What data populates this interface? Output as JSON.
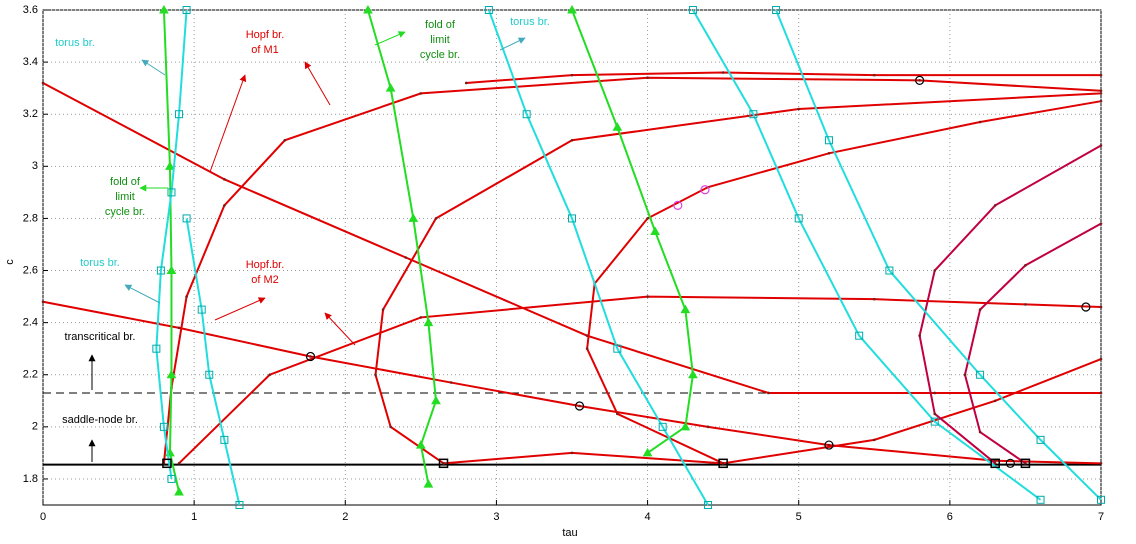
{
  "chart_data": {
    "type": "line",
    "xlabel": "tau",
    "ylabel": "c",
    "xlim": [
      0,
      7
    ],
    "xticks": [
      0,
      1,
      2,
      3,
      4,
      5,
      6,
      7
    ],
    "ylim": [
      1.7,
      3.6
    ],
    "yticks": [
      1.8,
      2,
      2.2,
      2.4,
      2.6,
      2.8,
      3,
      3.2,
      3.4,
      3.6
    ],
    "grid": true,
    "series": [
      {
        "color": "#000000",
        "dashed": false,
        "marker": "none",
        "x": [
          0,
          7
        ],
        "values": [
          1.855,
          1.855
        ]
      },
      {
        "color": "#000000",
        "dashed": true,
        "marker": "none",
        "x": [
          0,
          7
        ],
        "values": [
          2.13,
          2.13
        ]
      },
      {
        "color": "#e00000",
        "dashed": false,
        "marker": "dot",
        "x": [
          0,
          1.2,
          2.4,
          3.6,
          4.8,
          5.9,
          7
        ],
        "values": [
          3.32,
          2.95,
          2.65,
          2.35,
          2.13,
          2.13,
          2.13
        ]
      },
      {
        "color": "#e00000",
        "dashed": false,
        "marker": "dot",
        "x": [
          0,
          0.9,
          1.77,
          2.7,
          3.55,
          4.4,
          5.2,
          6.3,
          7
        ],
        "values": [
          2.48,
          2.38,
          2.27,
          2.17,
          2.08,
          2.0,
          1.93,
          1.87,
          1.86
        ]
      },
      {
        "color": "#e00000",
        "dashed": false,
        "marker": "dot",
        "x": [
          0.8,
          0.85,
          0.95,
          1.2,
          1.6,
          2.5,
          4,
          5.8,
          7
        ],
        "values": [
          1.86,
          2.15,
          2.5,
          2.85,
          3.1,
          3.28,
          3.34,
          3.33,
          3.29
        ]
      },
      {
        "color": "#e00000",
        "dashed": false,
        "marker": "dot",
        "x": [
          2.8,
          3.5,
          4.5,
          5.5,
          7
        ],
        "values": [
          3.32,
          3.35,
          3.36,
          3.35,
          3.35
        ]
      },
      {
        "color": "#e00000",
        "dashed": false,
        "marker": "dot",
        "x": [
          0.9,
          1.5,
          2.5,
          4,
          5.5,
          6.5,
          7
        ],
        "values": [
          1.86,
          2.2,
          2.42,
          2.5,
          2.49,
          2.47,
          2.46
        ]
      },
      {
        "color": "#e00000",
        "dashed": false,
        "marker": "dot",
        "x": [
          2.65,
          2.3,
          2.2,
          2.25,
          2.6,
          3.5,
          5,
          7
        ],
        "values": [
          1.86,
          2.0,
          2.2,
          2.45,
          2.8,
          3.1,
          3.22,
          3.28
        ]
      },
      {
        "color": "#e00000",
        "dashed": false,
        "marker": "dot",
        "x": [
          4.5,
          3.8,
          3.6,
          3.65,
          4,
          4.4,
          5.2,
          6.2,
          7
        ],
        "values": [
          1.86,
          2.05,
          2.3,
          2.55,
          2.8,
          2.92,
          3.05,
          3.17,
          3.25
        ]
      },
      {
        "color": "#e00000",
        "dashed": false,
        "marker": "dot",
        "x": [
          2.65,
          3.5,
          4.5,
          5.5,
          6.3,
          7
        ],
        "values": [
          1.86,
          1.9,
          1.86,
          1.95,
          2.1,
          2.26
        ]
      },
      {
        "color": "#c00040",
        "dashed": false,
        "marker": "dot",
        "x": [
          6.3,
          5.9,
          5.8,
          5.9,
          6.3,
          7
        ],
        "values": [
          1.86,
          2.05,
          2.35,
          2.6,
          2.85,
          3.08
        ]
      },
      {
        "color": "#c00040",
        "dashed": false,
        "marker": "dot",
        "x": [
          6.5,
          6.2,
          6.1,
          6.2,
          6.5,
          7
        ],
        "values": [
          1.86,
          1.98,
          2.2,
          2.45,
          2.62,
          2.78
        ]
      },
      {
        "color": "#22dd22",
        "dashed": false,
        "marker": "triangle",
        "x": [
          0.8,
          0.84,
          0.85,
          0.85,
          0.84,
          0.9
        ],
        "values": [
          3.6,
          3.0,
          2.6,
          2.2,
          1.9,
          1.75
        ]
      },
      {
        "color": "#22dd22",
        "dashed": false,
        "marker": "triangle",
        "x": [
          2.15,
          2.3,
          2.45,
          2.55,
          2.6,
          2.5,
          2.55
        ],
        "values": [
          3.6,
          3.3,
          2.8,
          2.4,
          2.1,
          1.93,
          1.78
        ]
      },
      {
        "color": "#22dd22",
        "dashed": false,
        "marker": "triangle",
        "x": [
          3.5,
          3.8,
          4.05,
          4.25,
          4.3,
          4.25,
          4.0
        ],
        "values": [
          3.6,
          3.15,
          2.75,
          2.45,
          2.2,
          2.0,
          1.9
        ]
      },
      {
        "color": "#22dddd",
        "dashed": false,
        "marker": "square",
        "x": [
          0.95,
          0.9,
          0.85,
          0.78,
          0.75,
          0.8,
          0.85
        ],
        "values": [
          3.6,
          3.2,
          2.9,
          2.6,
          2.3,
          2.0,
          1.8
        ]
      },
      {
        "color": "#22dddd",
        "dashed": false,
        "marker": "square",
        "x": [
          0.95,
          1.05,
          1.1,
          1.2,
          1.3
        ],
        "values": [
          2.8,
          2.45,
          2.2,
          1.95,
          1.7
        ]
      },
      {
        "color": "#22dddd",
        "dashed": false,
        "marker": "square",
        "x": [
          2.95,
          3.2,
          3.5,
          3.8,
          4.1,
          4.4
        ],
        "values": [
          3.6,
          3.2,
          2.8,
          2.3,
          2.0,
          1.7
        ]
      },
      {
        "color": "#22dddd",
        "dashed": false,
        "marker": "square",
        "x": [
          4.3,
          4.7,
          5.0,
          5.4,
          5.9,
          6.6
        ],
        "values": [
          3.6,
          3.2,
          2.8,
          2.35,
          2.02,
          1.72
        ]
      },
      {
        "color": "#22dddd",
        "dashed": false,
        "marker": "square",
        "x": [
          4.85,
          5.2,
          5.6,
          6.2,
          6.6,
          7
        ],
        "values": [
          3.6,
          3.1,
          2.6,
          2.2,
          1.95,
          1.72
        ]
      },
      {
        "color": "#000000",
        "dashed": false,
        "marker": "circle-only",
        "x": [
          1.77,
          3.55,
          5.2,
          5.8,
          6.9,
          6.4
        ],
        "values": [
          2.27,
          2.08,
          1.93,
          3.33,
          2.46,
          1.86
        ]
      },
      {
        "color": "#000000",
        "dashed": false,
        "marker": "square-only",
        "x": [
          0.82,
          2.65,
          4.5,
          6.3,
          6.5
        ],
        "values": [
          1.86,
          1.86,
          1.86,
          1.86,
          1.86
        ]
      },
      {
        "color": "#e040e0",
        "dashed": false,
        "marker": "circle-only",
        "x": [
          4.2,
          4.38
        ],
        "values": [
          2.85,
          2.91
        ]
      }
    ],
    "annotations": [
      {
        "text": [
          "torus br."
        ],
        "color": "#22cccc"
      },
      {
        "text": [
          "Hopf br.",
          "of M1"
        ],
        "color": "#e00000"
      },
      {
        "text": [
          "fold of",
          "limit",
          "cycle br."
        ],
        "color": "#109010"
      },
      {
        "text": [
          "torus br."
        ],
        "color": "#22cccc"
      },
      {
        "text": [
          "fold of",
          "limit",
          "cycle br."
        ],
        "color": "#109010"
      },
      {
        "text": [
          "torus br."
        ],
        "color": "#22cccc"
      },
      {
        "text": [
          "Hopf.br.",
          "of M2"
        ],
        "color": "#e00000"
      },
      {
        "text": [
          "transcritical br."
        ],
        "color": "#000000"
      },
      {
        "text": [
          "saddle-node br."
        ],
        "color": "#000000"
      }
    ]
  }
}
